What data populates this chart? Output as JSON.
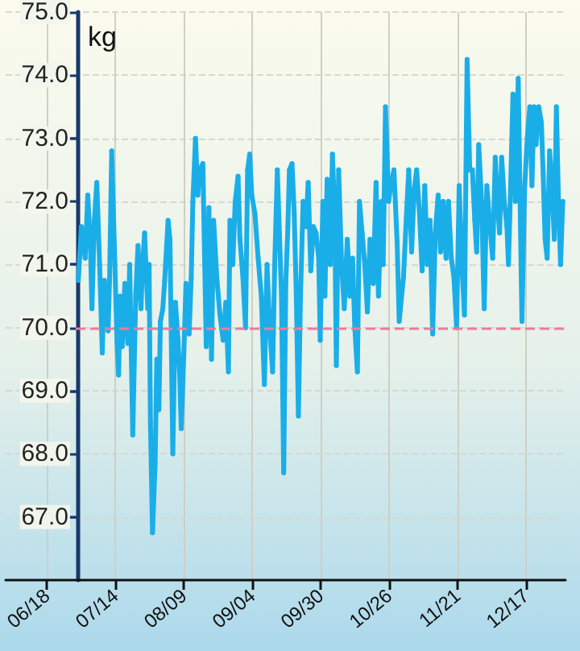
{
  "chart_data": {
    "type": "line",
    "ylabel": "kg",
    "x": [
      "--06-29T22:00",
      "--07-01T02:00",
      "--07-02T12:00",
      "--07-03T12:00",
      "--07-04T12:00",
      "--07-05T02:00",
      "--07-06T00:00",
      "--07-06T22:00",
      "--07-08T00:00",
      "--07-09T00:00",
      "--07-09T19:00",
      "--07-11T05:00",
      "--07-11T19:00",
      "--07-12T14:00",
      "--07-13T19:00",
      "--07-14T14:00",
      "--07-15T05:00",
      "--07-15T19:00",
      "--07-16T14:00",
      "--07-17T14:00",
      "--07-18T17:00",
      "--07-19T10:00",
      "--07-20T14:00",
      "--07-21T17:00",
      "--07-22T14:00",
      "--07-23T17:00",
      "--07-24T07:00",
      "--07-25T02:00",
      "--07-26T07:00",
      "--07-26T19:00",
      "--07-27T07:00",
      "--07-28T02:00",
      "--07-29T02:00",
      "--07-29T17:00",
      "--07-30T12:00",
      "--07-31T02:00",
      "--08-01T00:00",
      "--08-01T17:00",
      "--08-03T00:00",
      "--08-03T17:00",
      "--08-04T19:00",
      "--08-05T19:00",
      "--08-06T19:00",
      "--08-07T10:00",
      "--08-08T00:00",
      "--08-09T00:00",
      "--08-09T19:00",
      "--08-11T00:00",
      "--08-11T19:00",
      "--08-12T10:00",
      "--08-13T10:00",
      "--08-14T07:00",
      "--08-15T00:00",
      "--08-16T05:00",
      "--08-17T12:00",
      "--08-18T12:00",
      "--08-19T12:00",
      "--08-20T07:00",
      "--08-21T12:00",
      "--08-22T17:00",
      "--08-23T22:00",
      "--08-24T22:00",
      "--08-25T22:00",
      "--08-26T12:00",
      "--08-27T14:00",
      "--08-28T12:00",
      "--08-29T14:00",
      "--08-30T07:00",
      "--08-31T10:00",
      "--09-01T10:00",
      "--09-02T05:00",
      "--09-03T00:00",
      "--09-03T19:00",
      "--09-05T00:00",
      "--09-06T05:00",
      "--09-07T10:00",
      "--09-08T14:00",
      "--09-09T14:00",
      "--09-10T14:00",
      "--09-11T17:00",
      "--09-12T12:00",
      "--09-13T12:00",
      "--09-14T07:00",
      "--09-15T02:00",
      "--09-15T22:00",
      "--09-16T17:00",
      "--09-17T12:00",
      "--09-18T02:00",
      "--09-19T02:00",
      "--09-19T22:00",
      "--09-20T17:00",
      "--09-21T12:00",
      "--09-22T07:00",
      "--09-23T07:00",
      "--09-24T10:00",
      "--09-25T05:00",
      "--09-26T05:00",
      "--09-27T05:00",
      "--09-28T05:00",
      "--09-29T05:00",
      "--09-29T19:00",
      "--09-30T19:00",
      "--10-01T14:00",
      "--10-02T10:00",
      "--10-03T14:00",
      "--10-04T10:00",
      "--10-05T07:00",
      "--10-05T22:00",
      "--10-06T19:00",
      "--10-07T22:00",
      "--10-08T22:00",
      "--10-10T02:00",
      "--10-11T02:00",
      "--10-12T02:00",
      "--10-12T22:00",
      "--10-13T22:00",
      "--10-14T17:00",
      "--10-15T17:00",
      "--10-16T17:00",
      "--10-17T17:00",
      "--10-18T17:00",
      "--10-19T22:00",
      "--10-21T00:00",
      "--10-21T22:00",
      "--10-23T00:00",
      "--10-23T17:00",
      "--10-24T14:00",
      "--10-25T19:00",
      "--10-26T14:00",
      "--10-27T19:00",
      "--10-29T00:00",
      "--10-29T19:00",
      "--10-31T10:00",
      "--11-01T12:00",
      "--11-02T10:00",
      "--11-03T12:00",
      "--11-04T12:00",
      "--11-05T10:00",
      "--11-06T12:00",
      "--11-07T12:00",
      "--11-08T12:00",
      "--11-09T12:00",
      "--11-10T12:00",
      "--11-11T12:00",
      "--11-12T12:00",
      "--11-13T14:00",
      "--11-14T12:00",
      "--11-15T12:00",
      "--11-16T14:00",
      "--11-17T12:00",
      "--11-18T14:00",
      "--11-19T14:00",
      "--11-20T14:00",
      "--11-21T14:00",
      "--11-22T14:00",
      "--11-23T14:00",
      "--11-24T14:00",
      "--11-25T14:00",
      "--11-26T14:00",
      "--11-27T12:00",
      "--11-28T05:00",
      "--11-29T00:00",
      "--11-30T02:00",
      "--12-01T02:00",
      "--12-02T02:00",
      "--12-03T02:00",
      "--12-04T07:00",
      "--12-05T07:00",
      "--12-06T02:00",
      "--12-06T22:00",
      "--12-07T17:00",
      "--12-08T17:00",
      "--12-09T17:00",
      "--12-10T07:00",
      "--12-11T02:00",
      "--12-12T00:00",
      "--12-12T22:00",
      "--12-14T00:00",
      "--12-14T17:00",
      "--12-15T10:00",
      "--12-16T10:00",
      "--12-17T10:00",
      "--12-18T10:00",
      "--12-19T05:00",
      "--12-20T00:00",
      "--12-20T19:00",
      "--12-21T19:00",
      "--12-22T19:00",
      "--12-23T12:00",
      "--12-24T05:00",
      "--12-25T00:00",
      "--12-25T22:00",
      "--12-26T17:00",
      "--12-27T17:00",
      "--12-28T12:00",
      "--12-29T07:00",
      "--12-30T02:00",
      "--12-30T22:00"
    ],
    "series": [
      {
        "color": "#1aaee8",
        "values": [
          70.75,
          71.6,
          71.1,
          72.1,
          71.3,
          70.3,
          71.7,
          72.3,
          71.0,
          69.6,
          70.75,
          69.95,
          70.8,
          72.8,
          71.0,
          69.8,
          69.25,
          70.5,
          69.7,
          70.7,
          69.75,
          71.0,
          68.3,
          70.5,
          71.3,
          70.3,
          71.0,
          71.5,
          70.3,
          71.0,
          68.5,
          66.75,
          67.85,
          69.5,
          68.7,
          70.1,
          70.3,
          70.75,
          71.7,
          71.4,
          68.0,
          70.4,
          69.8,
          69.25,
          68.4,
          69.6,
          70.7,
          69.9,
          70.8,
          72.0,
          73.0,
          72.1,
          72.5,
          72.6,
          69.7,
          71.9,
          69.5,
          71.7,
          70.8,
          70.2,
          69.8,
          70.4,
          69.3,
          71.7,
          71.0,
          72.0,
          72.4,
          71.4,
          70.8,
          70.0,
          72.5,
          72.75,
          72.1,
          71.8,
          71.1,
          70.5,
          69.1,
          71.0,
          70.0,
          69.3,
          71.0,
          72.5,
          71.5,
          70.5,
          67.7,
          70.7,
          71.6,
          72.5,
          72.6,
          71.8,
          70.5,
          68.6,
          70.5,
          72.0,
          71.6,
          72.3,
          70.9,
          71.6,
          71.5,
          71.1,
          69.8,
          72.0,
          70.5,
          72.35,
          71.0,
          72.75,
          71.8,
          69.4,
          72.5,
          71.0,
          70.3,
          71.4,
          70.5,
          71.1,
          70.0,
          69.3,
          72.0,
          71.5,
          71.0,
          70.25,
          71.4,
          70.7,
          72.3,
          70.5,
          72.0,
          71.0,
          73.5,
          72.0,
          72.25,
          72.5,
          71.35,
          70.1,
          70.8,
          71.75,
          72.5,
          71.2,
          72.2,
          72.5,
          71.8,
          70.9,
          72.25,
          71.0,
          71.7,
          69.9,
          71.5,
          72.1,
          71.2,
          72.0,
          71.1,
          72.0,
          71.1,
          70.8,
          70.0,
          72.25,
          71.0,
          70.2,
          74.25,
          72.5,
          72.5,
          71.7,
          71.2,
          72.9,
          72.0,
          70.3,
          72.25,
          71.7,
          71.1,
          72.7,
          72.0,
          71.5,
          72.7,
          72.0,
          71.6,
          71.0,
          72.2,
          73.7,
          72.0,
          73.95,
          72.0,
          70.1,
          72.2,
          73.0,
          73.5,
          72.25,
          73.5,
          72.9,
          73.5,
          73.25,
          72.4,
          71.4,
          71.1,
          72.8,
          72.35,
          71.4,
          73.5,
          72.0,
          71.0,
          72.0
        ]
      }
    ],
    "xlim": [
      "--06-02T07:00",
      "--12-31T23:00"
    ],
    "xticks": [
      {
        "value": "--06-18",
        "label": "06/18"
      },
      {
        "value": "--07-14",
        "label": "07/14"
      },
      {
        "value": "--08-09",
        "label": "08/09"
      },
      {
        "value": "--09-04",
        "label": "09/04"
      },
      {
        "value": "--09-30",
        "label": "09/30"
      },
      {
        "value": "--10-26",
        "label": "10/26"
      },
      {
        "value": "--11-21",
        "label": "11/21"
      },
      {
        "value": "--12-17",
        "label": "12/17"
      }
    ],
    "ylim": [
      66,
      75
    ],
    "yticks": [
      {
        "value": 67,
        "label": "67.0"
      },
      {
        "value": 68,
        "label": "68.0"
      },
      {
        "value": 69,
        "label": "69.0"
      },
      {
        "value": 70,
        "label": "70.0"
      },
      {
        "value": 71,
        "label": "71.0"
      },
      {
        "value": 72,
        "label": "72.0"
      },
      {
        "value": 73,
        "label": "73.0"
      },
      {
        "value": 74,
        "label": "74.0"
      },
      {
        "value": 75,
        "label": "75.0"
      }
    ],
    "ref_lines": [
      {
        "axis": "y",
        "value": 70,
        "color": "#f07aa0",
        "line_style": "dashed"
      }
    ],
    "grid": true,
    "marker": "circle",
    "line_style": "solid"
  }
}
